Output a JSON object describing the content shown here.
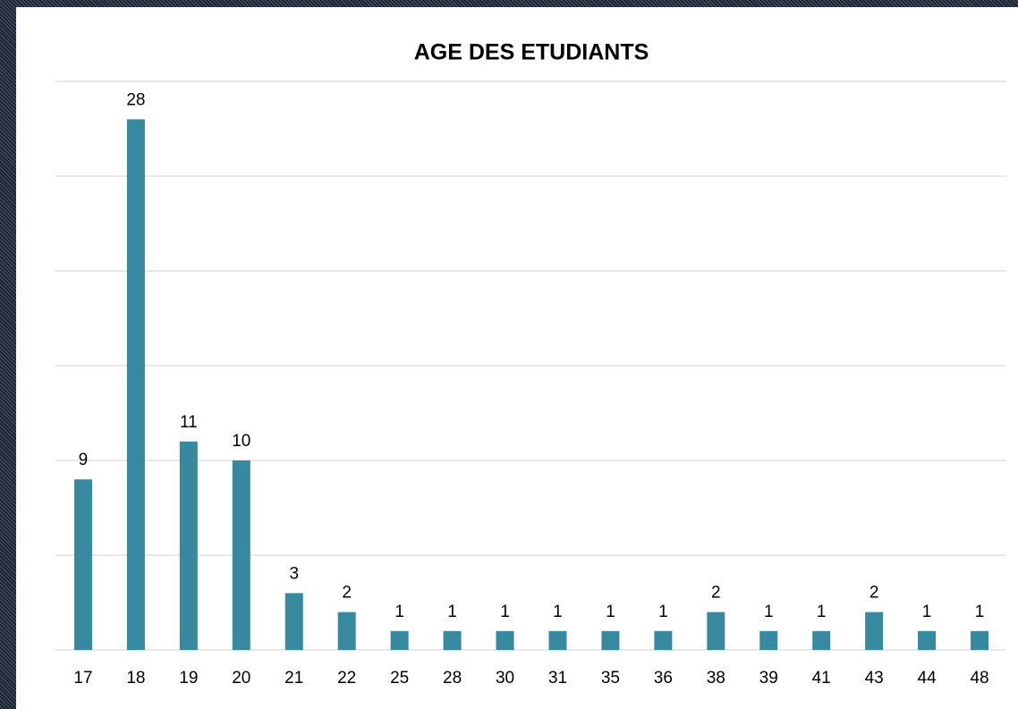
{
  "chart_data": {
    "type": "bar",
    "title": "AGE DES ETUDIANTS",
    "categories": [
      "17",
      "18",
      "19",
      "20",
      "21",
      "22",
      "25",
      "28",
      "30",
      "31",
      "35",
      "36",
      "38",
      "39",
      "41",
      "43",
      "44",
      "48"
    ],
    "values": [
      9,
      28,
      11,
      10,
      3,
      2,
      1,
      1,
      1,
      1,
      1,
      1,
      2,
      1,
      1,
      2,
      1,
      1
    ],
    "color": "#3789a0",
    "ylim": [
      0,
      30
    ],
    "yticks": [
      0,
      5,
      10,
      15,
      20,
      25,
      30
    ],
    "grid": true
  }
}
